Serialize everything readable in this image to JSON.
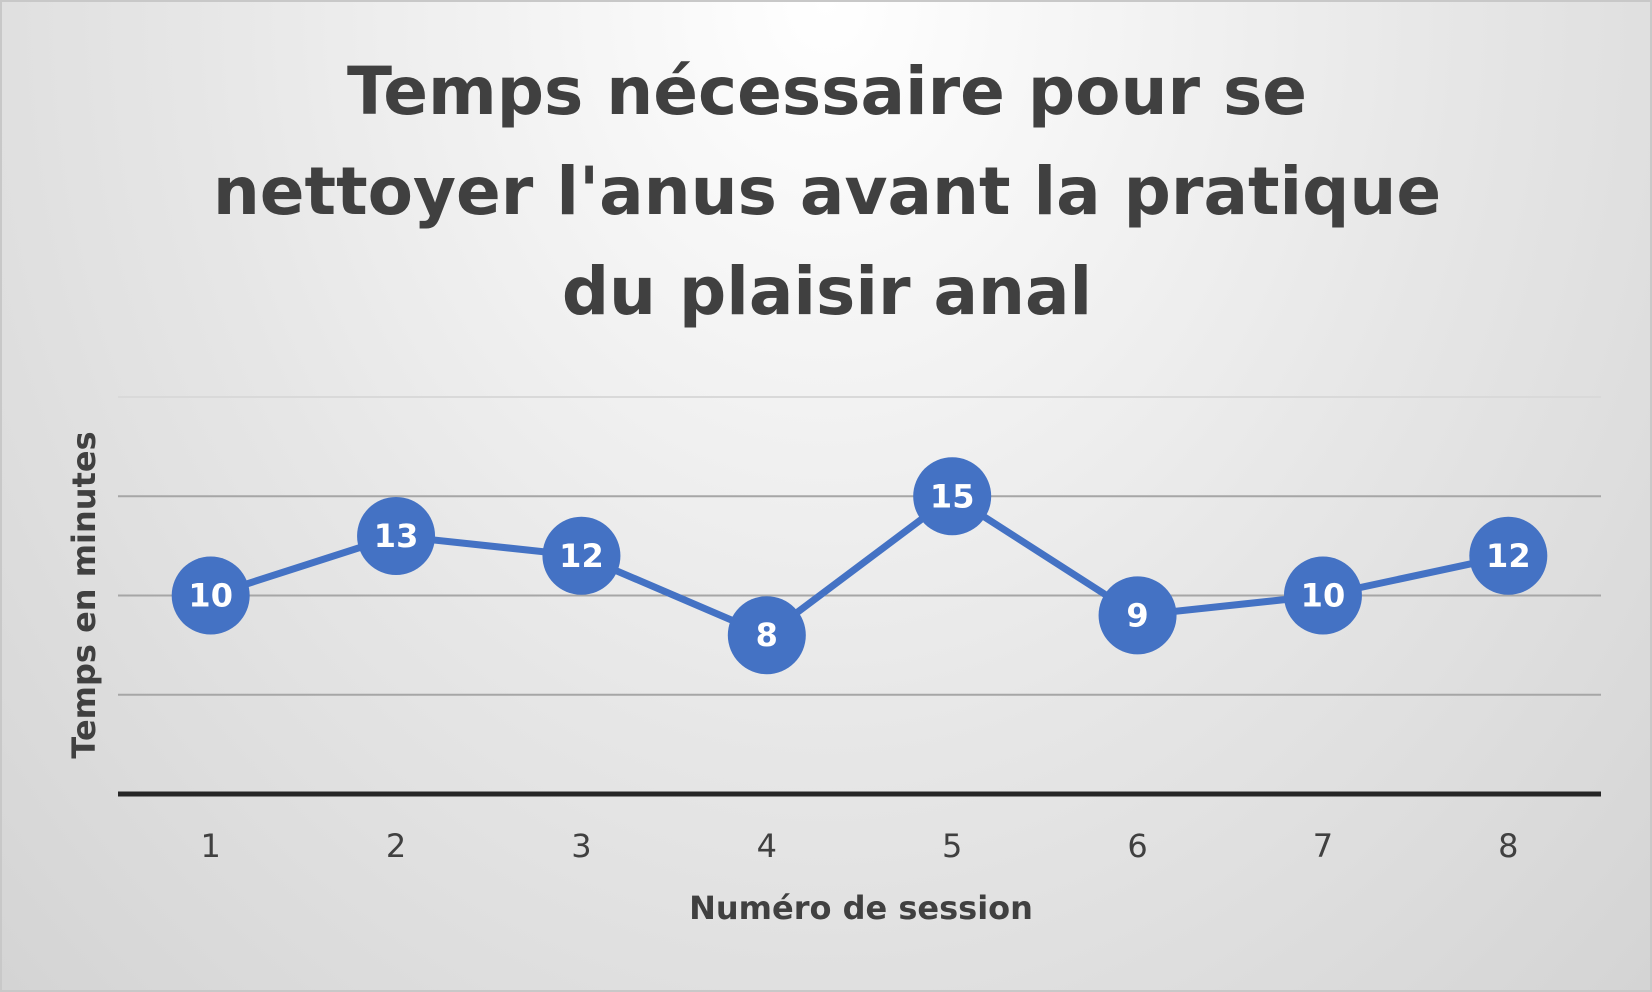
{
  "chart_data": {
    "type": "line",
    "title": "Temps nécessaire pour se nettoyer l'anus avant la pratique du plaisir anal",
    "x_label": "Numéro de session",
    "y_label": "Temps en minutes",
    "categories": [
      "1",
      "2",
      "3",
      "4",
      "5",
      "6",
      "7",
      "8"
    ],
    "series": [
      {
        "color": "#4472c4",
        "values": [
          10,
          13,
          12,
          8,
          15,
          9,
          10,
          12
        ]
      }
    ],
    "ylim": [
      0,
      20
    ],
    "yticks": [
      5,
      10,
      15,
      20
    ],
    "grid": true,
    "data_labels": true
  }
}
